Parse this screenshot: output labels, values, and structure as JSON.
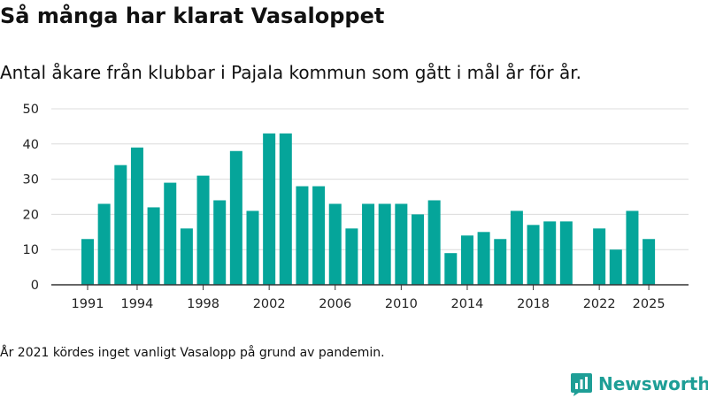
{
  "title": "Så många har klarat Vasaloppet",
  "subtitle": "Antal åkare från klubbar i Pajala kommun som gått i mål år för år.",
  "footnote": "År 2021 kördes inget vanligt Vasalopp på grund av pandemin.",
  "brand": {
    "name": "Newsworthy",
    "color": "#1e9e96"
  },
  "chart_data": {
    "type": "bar",
    "title": "Så många har klarat Vasaloppet",
    "xlabel": "",
    "ylabel": "",
    "color": "#05a59a",
    "grid": true,
    "ylim": [
      0,
      50
    ],
    "yticks": [
      0,
      10,
      20,
      30,
      40,
      50
    ],
    "xticks": [
      1991,
      1994,
      1998,
      2002,
      2006,
      2010,
      2014,
      2018,
      2022,
      2025
    ],
    "x": [
      1991,
      1992,
      1993,
      1994,
      1995,
      1996,
      1997,
      1998,
      1999,
      2000,
      2001,
      2002,
      2003,
      2004,
      2005,
      2006,
      2007,
      2008,
      2009,
      2010,
      2011,
      2012,
      2013,
      2014,
      2015,
      2016,
      2017,
      2018,
      2019,
      2020,
      2021,
      2022,
      2023,
      2024,
      2025
    ],
    "values": [
      13,
      23,
      34,
      39,
      22,
      29,
      16,
      31,
      24,
      38,
      21,
      43,
      43,
      28,
      28,
      23,
      16,
      23,
      23,
      23,
      20,
      24,
      9,
      14,
      15,
      13,
      21,
      17,
      18,
      18,
      null,
      16,
      10,
      21,
      13
    ]
  }
}
